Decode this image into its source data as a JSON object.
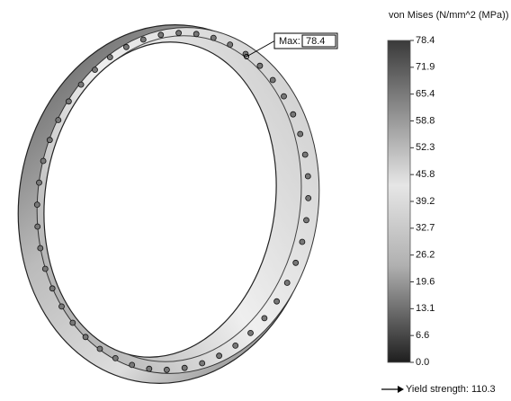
{
  "legend": {
    "title": "von Mises (N/mm^2 (MPa))",
    "ticks": [
      "78.4",
      "71.9",
      "65.4",
      "58.8",
      "52.3",
      "45.8",
      "39.2",
      "32.7",
      "26.2",
      "19.6",
      "13.1",
      "6.6",
      "0.0"
    ],
    "yield_strength": "Yield strength: 110.3"
  },
  "max_label": {
    "label": "Max:",
    "value": "78.4"
  }
}
